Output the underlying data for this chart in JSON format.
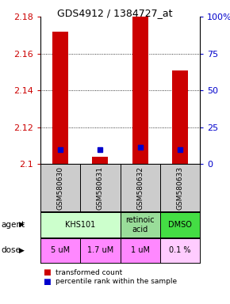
{
  "title": "GDS4912 / 1384727_at",
  "samples": [
    "GSM580630",
    "GSM580631",
    "GSM580632",
    "GSM580633"
  ],
  "bar_values": [
    2.172,
    2.104,
    2.18,
    2.151
  ],
  "bar_base": 2.1,
  "percentile_values": [
    2.108,
    2.108,
    2.109,
    2.108
  ],
  "ylim": [
    2.1,
    2.18
  ],
  "yticks_left": [
    2.1,
    2.12,
    2.14,
    2.16,
    2.18
  ],
  "yticks_right": [
    0,
    25,
    50,
    75,
    100
  ],
  "yticks_right_labels": [
    "0",
    "25",
    "50",
    "75",
    "100%"
  ],
  "bar_color": "#cc0000",
  "percentile_color": "#0000cc",
  "agent_row": [
    {
      "label": "KHS101",
      "colspan": 2,
      "color": "#ccffcc"
    },
    {
      "label": "retinoic\nacid",
      "colspan": 1,
      "color": "#99dd99"
    },
    {
      "label": "DMSO",
      "colspan": 1,
      "color": "#44dd44"
    }
  ],
  "dose_row": [
    {
      "label": "5 uM",
      "color": "#ff88ff"
    },
    {
      "label": "1.7 uM",
      "color": "#ff88ff"
    },
    {
      "label": "1 uM",
      "color": "#ff88ff"
    },
    {
      "label": "0.1 %",
      "color": "#ffccff"
    }
  ],
  "legend_red": "transformed count",
  "legend_blue": "percentile rank within the sample",
  "left_label_color": "#cc0000",
  "right_label_color": "#0000cc",
  "sample_bg_color": "#cccccc",
  "bar_width": 0.4
}
